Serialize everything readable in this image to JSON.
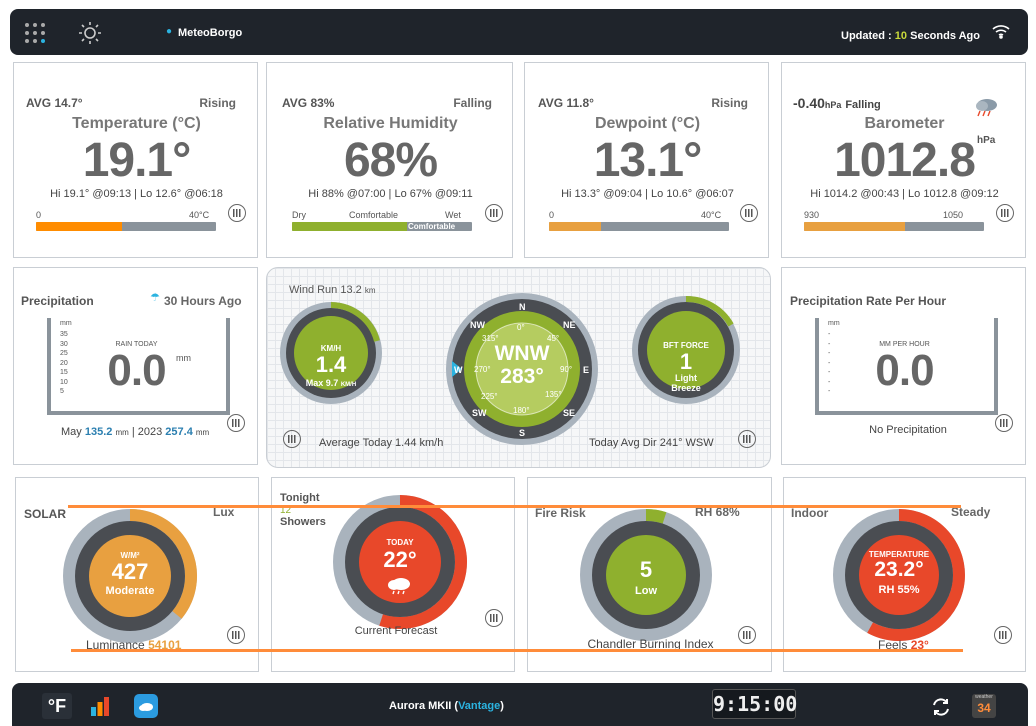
{
  "header": {
    "station_name": "MeteoBorgo",
    "updated_prefix": "Updated :",
    "updated_value": "10",
    "updated_suffix": "Seconds Ago",
    "icons": [
      "apps-grid-icon",
      "sun-icon",
      "location-pin-icon",
      "wifi-icon"
    ]
  },
  "temperature": {
    "avg": "AVG 14.7°",
    "trend": "Rising",
    "title": "Temperature (°C)",
    "value": "19.1°",
    "hilo": "Hi 19.1° @09:13 | Lo 12.6° @06:18",
    "scale_min": "0",
    "scale_max": "40°C",
    "fill_fraction": 0.48,
    "fill_color": "#ff8c00"
  },
  "humidity": {
    "avg": "AVG 83%",
    "trend": "Falling",
    "title": "Relative Humidity",
    "value": "68%",
    "hilo": "Hi 88% @07:00 | Lo 67% @09:11",
    "scale_dry": "Dry",
    "scale_comfortable": "Comfortable",
    "scale_wet": "Wet",
    "state": "Comfortable",
    "fill_fraction": 0.64,
    "fill_color": "#8fb02e"
  },
  "dewpoint": {
    "avg": "AVG 11.8°",
    "trend": "Rising",
    "title": "Dewpoint (°C)",
    "value": "13.1°",
    "hilo": "Hi 13.3° @09:04 | Lo 10.6° @06:07",
    "scale_min": "0",
    "scale_max": "40°C",
    "fill_fraction": 0.29,
    "fill_color": "#e8a040"
  },
  "barometer": {
    "trend_value": "-0.40",
    "trend_unit": "hPa",
    "trend": "Falling",
    "title": "Barometer",
    "value": "1012.8",
    "unit": "hPa",
    "hilo": "Hi 1014.2 @00:43 | Lo 1012.8 @09:12",
    "scale_min": "930",
    "scale_max": "1050",
    "fill_fraction": 0.56,
    "fill_color": "#e8a040"
  },
  "precipitation": {
    "title": "Precipitation",
    "last_rain": "30 Hours Ago",
    "label": "RAIN TODAY",
    "value": "0.0",
    "unit": "mm",
    "axis_unit": "mm",
    "ticks": [
      "35",
      "30",
      "25",
      "20",
      "15",
      "10",
      "5"
    ],
    "month_label": "May",
    "month_value": "135.2",
    "month_unit": "mm",
    "year_label": "2023",
    "year_value": "257.4",
    "year_unit": "mm"
  },
  "wind": {
    "run_label": "Wind Run",
    "run_value": "13.2",
    "run_unit": "km",
    "speed_unit": "KM/H",
    "speed": "1.4",
    "max_label": "Max 9.7",
    "max_unit": "KM/H",
    "avg_today": "Average Today 1.44 km/h",
    "direction": "WNW",
    "degrees": "283°",
    "compass_points": [
      "N",
      "NE",
      "E",
      "SE",
      "S",
      "SW",
      "W",
      "NW"
    ],
    "compass_degrees": [
      "0°",
      "45°",
      "90°",
      "135°",
      "180°",
      "225°",
      "270°",
      "315°"
    ],
    "avg_dir": "Today Avg Dir 241° WSW",
    "bft_label": "BFT FORCE",
    "bft_value": "1",
    "bft_desc": "Light Breeze"
  },
  "precip_rate": {
    "title": "Precipitation Rate Per Hour",
    "label": "MM PER HOUR",
    "value": "0.0",
    "axis_unit": "mm",
    "status": "No Precipitation"
  },
  "solar": {
    "label": "SOLAR",
    "unit_label": "Lux",
    "ring_unit": "W/M²",
    "value": "427",
    "desc": "Moderate",
    "luminance_label": "Luminance",
    "luminance_value": "54101",
    "fill_fraction": 0.36
  },
  "forecast": {
    "period": "Tonight",
    "period_temp": "12",
    "period_desc": "Showers",
    "label": "TODAY",
    "temp": "22°",
    "caption": "Current Forecast",
    "fill_fraction": 0.55
  },
  "fire": {
    "label": "Fire Risk",
    "rh": "RH 68%",
    "value": "5",
    "desc": "Low",
    "caption": "Chandler Burning Index",
    "fill_fraction": 0.05
  },
  "indoor": {
    "label": "Indoor",
    "trend": "Steady",
    "ring_label": "TEMPERATURE",
    "temp": "23.2°",
    "rh": "RH 55%",
    "feels_label": "Feels",
    "feels_value": "23°",
    "fill_fraction": 0.58
  },
  "footer": {
    "unit_toggle": "°F",
    "station": "Aurora MKII",
    "station_model": "Vantage",
    "time": "9:15:00",
    "calendar_day": "34",
    "calendar_label": "weather"
  },
  "colors": {
    "green": "#8fb02e",
    "orange": "#ff8c00",
    "amber": "#e8a040",
    "red": "#e8482a",
    "dark": "#4a4d52",
    "ring": "#a9b3bd",
    "accent": "#2bb3e0",
    "overlay_line": "#ff8c3a"
  }
}
